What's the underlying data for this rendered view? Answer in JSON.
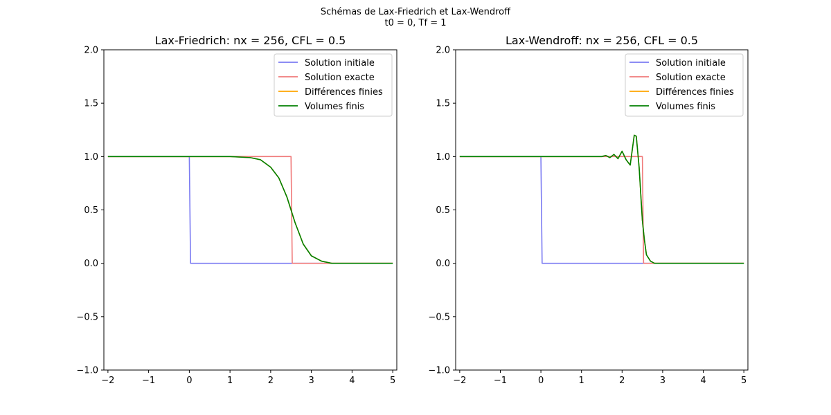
{
  "figure": {
    "suptitle_line1": "Schémas de Lax-Friedrich et Lax-Wendroff",
    "suptitle_line2": "t0 = 0, Tf = 1"
  },
  "colors": {
    "initial": "#7b7bf2",
    "exact": "#f07a7a",
    "finite_differences": "#ffa500",
    "finite_volumes": "#008000"
  },
  "chart_data": [
    {
      "type": "line",
      "title": "Lax-Friedrich: nx = 256, CFL = 0.5",
      "xlabel": "",
      "ylabel": "",
      "xlim": [
        -2.1,
        5.1
      ],
      "ylim": [
        -1.0,
        2.0
      ],
      "xticks": [
        -2,
        -1,
        0,
        1,
        2,
        3,
        4,
        5
      ],
      "xtick_labels": [
        "−2",
        "−1",
        "0",
        "1",
        "2",
        "3",
        "4",
        "5"
      ],
      "yticks": [
        -1.0,
        -0.5,
        0.0,
        0.5,
        1.0,
        1.5,
        2.0
      ],
      "ytick_labels": [
        "−1.0",
        "−0.5",
        "0.0",
        "0.5",
        "1.0",
        "1.5",
        "2.0"
      ],
      "grid": false,
      "legend_position": "top-right",
      "series": [
        {
          "name": "Solution initiale",
          "color_key": "initial",
          "x": [
            -2.0,
            0.0,
            0.03,
            5.0
          ],
          "y": [
            1.0,
            1.0,
            0.0,
            0.0
          ]
        },
        {
          "name": "Solution exacte",
          "color_key": "exact",
          "x": [
            -2.0,
            2.5,
            2.53,
            5.0
          ],
          "y": [
            1.0,
            1.0,
            0.0,
            0.0
          ]
        },
        {
          "name": "Différences finies",
          "color_key": "finite_differences",
          "x": [
            -2.0,
            0.5,
            1.0,
            1.5,
            1.75,
            2.0,
            2.2,
            2.4,
            2.5,
            2.6,
            2.8,
            3.0,
            3.25,
            3.5,
            4.0,
            5.0
          ],
          "y": [
            1.0,
            1.0,
            1.0,
            0.99,
            0.97,
            0.9,
            0.8,
            0.62,
            0.5,
            0.38,
            0.18,
            0.07,
            0.02,
            0.0,
            0.0,
            0.0
          ]
        },
        {
          "name": "Volumes finis",
          "color_key": "finite_volumes",
          "x": [
            -2.0,
            0.5,
            1.0,
            1.5,
            1.75,
            2.0,
            2.2,
            2.4,
            2.5,
            2.6,
            2.8,
            3.0,
            3.25,
            3.5,
            4.0,
            5.0
          ],
          "y": [
            1.0,
            1.0,
            1.0,
            0.99,
            0.97,
            0.9,
            0.8,
            0.62,
            0.5,
            0.38,
            0.18,
            0.07,
            0.02,
            0.0,
            0.0,
            0.0
          ]
        }
      ]
    },
    {
      "type": "line",
      "title": "Lax-Wendroff: nx = 256, CFL = 0.5",
      "xlabel": "",
      "ylabel": "",
      "xlim": [
        -2.1,
        5.1
      ],
      "ylim": [
        -1.0,
        2.0
      ],
      "xticks": [
        -2,
        -1,
        0,
        1,
        2,
        3,
        4,
        5
      ],
      "xtick_labels": [
        "−2",
        "−1",
        "0",
        "1",
        "2",
        "3",
        "4",
        "5"
      ],
      "yticks": [
        -1.0,
        -0.5,
        0.0,
        0.5,
        1.0,
        1.5,
        2.0
      ],
      "ytick_labels": [
        "−1.0",
        "−0.5",
        "0.0",
        "0.5",
        "1.0",
        "1.5",
        "2.0"
      ],
      "grid": false,
      "legend_position": "top-right",
      "series": [
        {
          "name": "Solution initiale",
          "color_key": "initial",
          "x": [
            -2.0,
            0.0,
            0.03,
            5.0
          ],
          "y": [
            1.0,
            1.0,
            0.0,
            0.0
          ]
        },
        {
          "name": "Solution exacte",
          "color_key": "exact",
          "x": [
            -2.0,
            2.5,
            2.53,
            5.0
          ],
          "y": [
            1.0,
            1.0,
            0.0,
            0.0
          ]
        },
        {
          "name": "Différences finies",
          "color_key": "finite_differences",
          "x": [
            -2.0,
            1.5,
            1.6,
            1.7,
            1.8,
            1.9,
            2.0,
            2.1,
            2.2,
            2.3,
            2.35,
            2.42,
            2.5,
            2.55,
            2.6,
            2.7,
            2.8,
            3.0,
            5.0
          ],
          "y": [
            1.0,
            1.0,
            1.01,
            0.99,
            1.02,
            0.98,
            1.05,
            0.97,
            0.92,
            1.2,
            1.19,
            0.9,
            0.4,
            0.22,
            0.08,
            0.02,
            0.0,
            0.0,
            0.0
          ]
        },
        {
          "name": "Volumes finis",
          "color_key": "finite_volumes",
          "x": [
            -2.0,
            1.5,
            1.6,
            1.7,
            1.8,
            1.9,
            2.0,
            2.1,
            2.2,
            2.3,
            2.35,
            2.42,
            2.5,
            2.55,
            2.6,
            2.7,
            2.8,
            3.0,
            5.0
          ],
          "y": [
            1.0,
            1.0,
            1.01,
            0.99,
            1.02,
            0.98,
            1.05,
            0.97,
            0.92,
            1.2,
            1.19,
            0.9,
            0.4,
            0.22,
            0.08,
            0.02,
            0.0,
            0.0,
            0.0
          ]
        }
      ]
    }
  ]
}
